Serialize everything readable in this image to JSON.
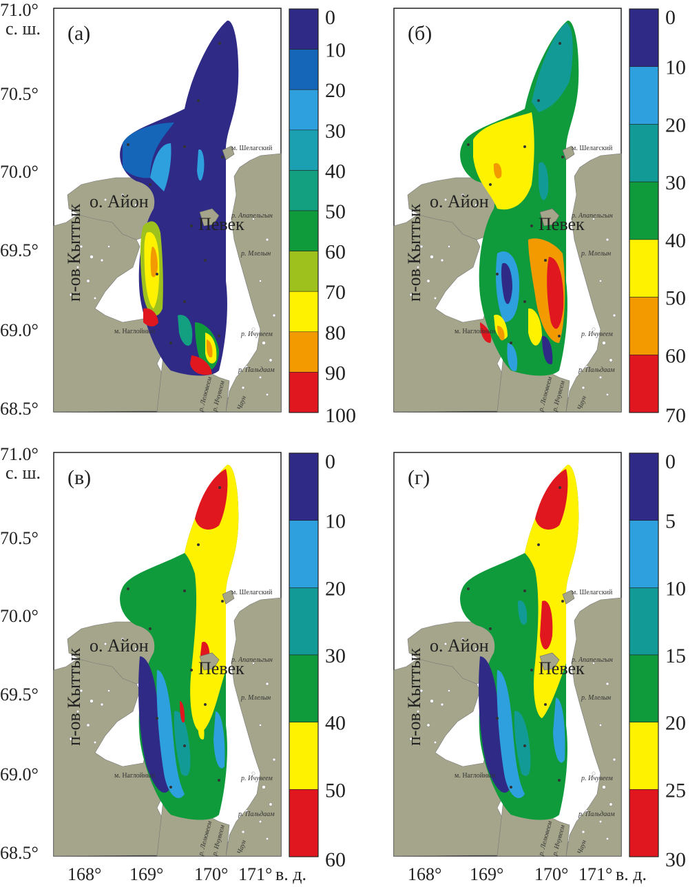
{
  "axes": {
    "lat_ticks": [
      "71.0°",
      "70.5°",
      "70.0°",
      "69.5°",
      "69.0°",
      "68.5°"
    ],
    "lat_unit": "с. ш.",
    "lon_ticks": [
      "168°",
      "169°",
      "170°",
      "171°"
    ],
    "lon_unit": "в. д."
  },
  "places": {
    "ayon": "о. Айон",
    "pevek": "Певек",
    "kyttyk": "п-ов Кыттык",
    "shelagsky": "м. Шелагский",
    "nagloynyn": "м. Наглойнын",
    "apapelgin": "р. Апапельгын",
    "mlelyn": "р. Млелын",
    "ichuveem": "р. Ичувеем",
    "paldavaam": "р. Пальдаам",
    "lelyuveem": "р. Лелювеем",
    "ichuveem2": "р. Ичувеем",
    "chaun": "Чаун"
  },
  "panels": [
    {
      "letter": "(а)",
      "colorbar_labels": [
        "0",
        "10",
        "20",
        "30",
        "40",
        "50",
        "60",
        "70",
        "80",
        "90",
        "100"
      ],
      "colors": [
        "#2e2a86",
        "#1565b8",
        "#2ea0de",
        "#1aa0b0",
        "#12a080",
        "#0f9a3c",
        "#9fc11e",
        "#fff200",
        "#f39a00",
        "#e0171f"
      ]
    },
    {
      "letter": "(б)",
      "colorbar_labels": [
        "0",
        "10",
        "20",
        "30",
        "40",
        "50",
        "60",
        "70"
      ],
      "colors": [
        "#2e2a86",
        "#2ea0de",
        "#129a96",
        "#0f9a3c",
        "#fff200",
        "#f39a00",
        "#e0171f"
      ]
    },
    {
      "letter": "(в)",
      "colorbar_labels": [
        "0",
        "10",
        "20",
        "30",
        "40",
        "50",
        "60"
      ],
      "colors": [
        "#2e2a86",
        "#2ea0de",
        "#129a96",
        "#0f9a3c",
        "#fff200",
        "#e0171f"
      ]
    },
    {
      "letter": "(г)",
      "colorbar_labels": [
        "0",
        "5",
        "10",
        "15",
        "20",
        "25",
        "30"
      ],
      "colors": [
        "#2e2a86",
        "#2ea0de",
        "#129a96",
        "#0f9a3c",
        "#fff200",
        "#e0171f"
      ]
    }
  ],
  "land_color": "#a4a58a"
}
